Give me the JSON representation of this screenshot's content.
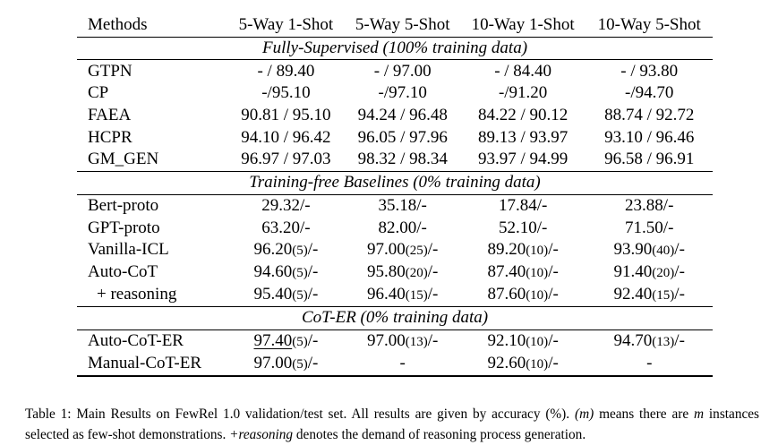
{
  "table": {
    "headers": [
      "Methods",
      "5-Way 1-Shot",
      "5-Way 5-Shot",
      "10-Way 1-Shot",
      "10-Way 5-Shot"
    ],
    "sections": [
      {
        "title": "Fully-Supervised (100% training data)",
        "rows": [
          {
            "method": "GTPN",
            "cells": [
              {
                "v": "- / 89.40"
              },
              {
                "v": "- / 97.00"
              },
              {
                "v": "- / 84.40"
              },
              {
                "v": "- / 93.80"
              }
            ]
          },
          {
            "method": "CP",
            "cells": [
              {
                "v": "-/95.10"
              },
              {
                "v": "-/97.10"
              },
              {
                "v": "-/91.20"
              },
              {
                "v": "-/94.70"
              }
            ]
          },
          {
            "method": "FAEA",
            "cells": [
              {
                "v": "90.81 / 95.10"
              },
              {
                "v": "94.24 / 96.48"
              },
              {
                "v": "84.22 / 90.12"
              },
              {
                "v": "88.74 / 92.72"
              }
            ]
          },
          {
            "method": "HCPR",
            "cells": [
              {
                "v": "94.10 / 96.42"
              },
              {
                "v": "96.05 / 97.96"
              },
              {
                "v": "89.13 / 93.97"
              },
              {
                "v": "93.10 / 96.46"
              }
            ]
          },
          {
            "method": "GM_GEN",
            "cells": [
              {
                "v": "96.97 / 97.03"
              },
              {
                "v": "98.32 / 98.34"
              },
              {
                "v": "93.97 / 94.99"
              },
              {
                "v": "96.58 / 96.91"
              }
            ]
          }
        ]
      },
      {
        "title": "Training-free Baselines (0% training data)",
        "rows": [
          {
            "method": "Bert-proto",
            "cells": [
              {
                "v": "29.32/-"
              },
              {
                "v": "35.18/-"
              },
              {
                "v": "17.84/-"
              },
              {
                "v": "23.88/-"
              }
            ]
          },
          {
            "method": "GPT-proto",
            "cells": [
              {
                "v": "63.20/-"
              },
              {
                "v": "82.00/-"
              },
              {
                "v": "52.10/-"
              },
              {
                "v": "71.50/-"
              }
            ]
          },
          {
            "method": "Vanilla-ICL",
            "cells": [
              {
                "v": "96.20",
                "m": "(5)",
                "t": "/-"
              },
              {
                "v": "97.00",
                "m": "(25)",
                "t": "/-"
              },
              {
                "v": "89.20",
                "m": "(10)",
                "t": "/-"
              },
              {
                "v": "93.90",
                "m": "(40)",
                "t": "/-"
              }
            ]
          },
          {
            "method": "Auto-CoT",
            "cells": [
              {
                "v": "94.60",
                "m": "(5)",
                "t": "/-"
              },
              {
                "v": "95.80",
                "m": "(20)",
                "t": "/-"
              },
              {
                "v": "87.40",
                "m": "(10)",
                "t": "/-"
              },
              {
                "v": "91.40",
                "m": "(20)",
                "t": "/-"
              }
            ]
          },
          {
            "method": "+ reasoning",
            "indent": true,
            "cells": [
              {
                "v": "95.40",
                "m": "(5)",
                "t": "/-"
              },
              {
                "v": "96.40",
                "m": "(15)",
                "t": "/-"
              },
              {
                "v": "87.60",
                "m": "(10)",
                "t": "/-"
              },
              {
                "v": "92.40",
                "m": "(15)",
                "t": "/-"
              }
            ]
          }
        ]
      },
      {
        "title": "CoT-ER (0% training data)",
        "rows": [
          {
            "method": "Auto-CoT-ER",
            "cells": [
              {
                "v": "97.40",
                "m": "(5)",
                "t": "/-",
                "underline": true
              },
              {
                "v": "97.00",
                "m": "(13)",
                "t": "/-"
              },
              {
                "v": "92.10",
                "m": "(10)",
                "t": "/-"
              },
              {
                "v": "94.70",
                "m": "(13)",
                "t": "/-"
              }
            ]
          },
          {
            "method": "Manual-CoT-ER",
            "cells": [
              {
                "v": "97.00",
                "m": "(5)",
                "t": "/-"
              },
              {
                "v": "-"
              },
              {
                "v": "92.60",
                "m": "(10)",
                "t": "/-"
              },
              {
                "v": "-"
              }
            ]
          }
        ]
      }
    ]
  },
  "caption": {
    "p1": "Table 1: Main Results on FewRel 1.0 validation/test set. All results are given by accuracy (%). ",
    "m1": "(m)",
    "p2": " means there are ",
    "m2": "m",
    "p3": " instances selected as few-shot demonstrations. ",
    "m3": "+reasoning",
    "p4": " denotes the demand of reasoning process generation."
  }
}
